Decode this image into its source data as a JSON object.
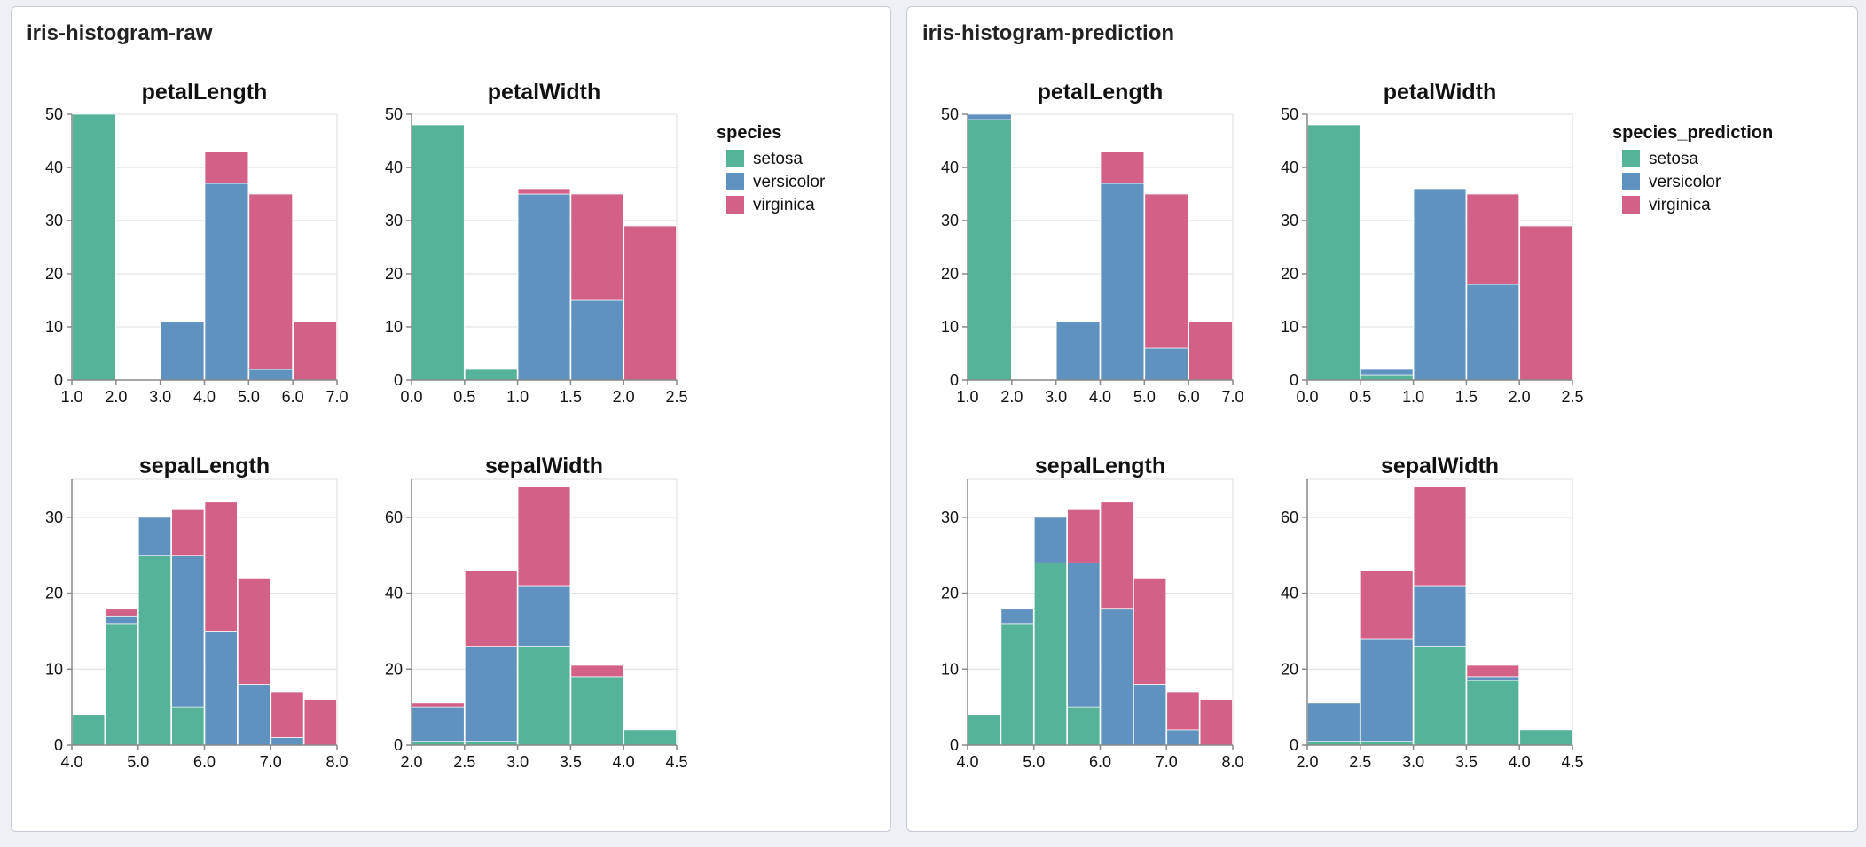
{
  "colors": {
    "setosa": "#54b399",
    "versicolor": "#6092c0",
    "virginica": "#d36086"
  },
  "panels": [
    {
      "title": "iris-histogram-raw",
      "legend_title": "species",
      "legend_items": [
        "setosa",
        "versicolor",
        "virginica"
      ]
    },
    {
      "title": "iris-histogram-prediction",
      "legend_title": "species_prediction",
      "legend_items": [
        "setosa",
        "versicolor",
        "virginica"
      ]
    }
  ],
  "chart_data": [
    {
      "type": "bar",
      "stacked": true,
      "panel": "iris-histogram-raw",
      "title": "petalLength",
      "xlim": [
        1.0,
        7.0
      ],
      "ylim": [
        0,
        50
      ],
      "xticks": [
        "1.0",
        "2.0",
        "3.0",
        "4.0",
        "5.0",
        "6.0",
        "7.0"
      ],
      "yticks": [
        0,
        10,
        20,
        30,
        40,
        50
      ],
      "bins": [
        [
          1,
          2
        ],
        [
          2,
          3
        ],
        [
          3,
          4
        ],
        [
          4,
          5
        ],
        [
          5,
          6
        ],
        [
          6,
          7
        ]
      ],
      "series": [
        {
          "name": "setosa",
          "values": [
            50,
            0,
            0,
            0,
            0,
            0
          ]
        },
        {
          "name": "versicolor",
          "values": [
            0,
            0,
            11,
            37,
            2,
            0
          ]
        },
        {
          "name": "virginica",
          "values": [
            0,
            0,
            0,
            6,
            33,
            11
          ]
        }
      ]
    },
    {
      "type": "bar",
      "stacked": true,
      "panel": "iris-histogram-raw",
      "title": "petalWidth",
      "xlim": [
        0.0,
        2.5
      ],
      "ylim": [
        0,
        50
      ],
      "xticks": [
        "0.0",
        "0.5",
        "1.0",
        "1.5",
        "2.0",
        "2.5"
      ],
      "yticks": [
        0,
        10,
        20,
        30,
        40,
        50
      ],
      "bins": [
        [
          0,
          0.5
        ],
        [
          0.5,
          1.0
        ],
        [
          1.0,
          1.5
        ],
        [
          1.5,
          2.0
        ],
        [
          2.0,
          2.5
        ]
      ],
      "series": [
        {
          "name": "setosa",
          "values": [
            48,
            2,
            0,
            0,
            0
          ]
        },
        {
          "name": "versicolor",
          "values": [
            0,
            0,
            35,
            15,
            0
          ]
        },
        {
          "name": "virginica",
          "values": [
            0,
            0,
            1,
            20,
            29
          ]
        }
      ]
    },
    {
      "type": "bar",
      "stacked": true,
      "panel": "iris-histogram-raw",
      "title": "sepalLength",
      "xlim": [
        4.0,
        8.0
      ],
      "ylim": [
        0,
        35
      ],
      "xticks": [
        "4.0",
        "5.0",
        "6.0",
        "7.0",
        "8.0"
      ],
      "yticks": [
        0,
        10,
        20,
        30
      ],
      "bins": [
        [
          4.0,
          4.5
        ],
        [
          4.5,
          5.0
        ],
        [
          5.0,
          5.5
        ],
        [
          5.5,
          6.0
        ],
        [
          6.0,
          6.5
        ],
        [
          6.5,
          7.0
        ],
        [
          7.0,
          7.5
        ],
        [
          7.5,
          8.0
        ]
      ],
      "series": [
        {
          "name": "setosa",
          "values": [
            4,
            16,
            25,
            5,
            0,
            0,
            0,
            0
          ]
        },
        {
          "name": "versicolor",
          "values": [
            0,
            1,
            5,
            20,
            15,
            8,
            1,
            0
          ]
        },
        {
          "name": "virginica",
          "values": [
            0,
            1,
            0,
            6,
            17,
            14,
            6,
            6
          ]
        }
      ]
    },
    {
      "type": "bar",
      "stacked": true,
      "panel": "iris-histogram-raw",
      "title": "sepalWidth",
      "xlim": [
        2.0,
        4.5
      ],
      "ylim": [
        0,
        70
      ],
      "xticks": [
        "2.0",
        "2.5",
        "3.0",
        "3.5",
        "4.0",
        "4.5"
      ],
      "yticks": [
        0,
        20,
        40,
        60
      ],
      "bins": [
        [
          2.0,
          2.5
        ],
        [
          2.5,
          3.0
        ],
        [
          3.0,
          3.5
        ],
        [
          3.5,
          4.0
        ],
        [
          4.0,
          4.5
        ]
      ],
      "series": [
        {
          "name": "setosa",
          "values": [
            1,
            1,
            26,
            18,
            4
          ]
        },
        {
          "name": "versicolor",
          "values": [
            9,
            25,
            16,
            0,
            0
          ]
        },
        {
          "name": "virginica",
          "values": [
            1,
            20,
            26,
            3,
            0
          ]
        }
      ]
    },
    {
      "type": "bar",
      "stacked": true,
      "panel": "iris-histogram-prediction",
      "title": "petalLength",
      "xlim": [
        1.0,
        7.0
      ],
      "ylim": [
        0,
        50
      ],
      "xticks": [
        "1.0",
        "2.0",
        "3.0",
        "4.0",
        "5.0",
        "6.0",
        "7.0"
      ],
      "yticks": [
        0,
        10,
        20,
        30,
        40,
        50
      ],
      "bins": [
        [
          1,
          2
        ],
        [
          2,
          3
        ],
        [
          3,
          4
        ],
        [
          4,
          5
        ],
        [
          5,
          6
        ],
        [
          6,
          7
        ]
      ],
      "series": [
        {
          "name": "setosa",
          "values": [
            49,
            0,
            0,
            0,
            0,
            0
          ]
        },
        {
          "name": "versicolor",
          "values": [
            1,
            0,
            11,
            37,
            6,
            0
          ]
        },
        {
          "name": "virginica",
          "values": [
            0,
            0,
            0,
            6,
            29,
            11
          ]
        }
      ]
    },
    {
      "type": "bar",
      "stacked": true,
      "panel": "iris-histogram-prediction",
      "title": "petalWidth",
      "xlim": [
        0.0,
        2.5
      ],
      "ylim": [
        0,
        50
      ],
      "xticks": [
        "0.0",
        "0.5",
        "1.0",
        "1.5",
        "2.0",
        "2.5"
      ],
      "yticks": [
        0,
        10,
        20,
        30,
        40,
        50
      ],
      "bins": [
        [
          0,
          0.5
        ],
        [
          0.5,
          1.0
        ],
        [
          1.0,
          1.5
        ],
        [
          1.5,
          2.0
        ],
        [
          2.0,
          2.5
        ]
      ],
      "series": [
        {
          "name": "setosa",
          "values": [
            48,
            1,
            0,
            0,
            0
          ]
        },
        {
          "name": "versicolor",
          "values": [
            0,
            1,
            36,
            18,
            0
          ]
        },
        {
          "name": "virginica",
          "values": [
            0,
            0,
            0,
            17,
            29
          ]
        }
      ]
    },
    {
      "type": "bar",
      "stacked": true,
      "panel": "iris-histogram-prediction",
      "title": "sepalLength",
      "xlim": [
        4.0,
        8.0
      ],
      "ylim": [
        0,
        35
      ],
      "xticks": [
        "4.0",
        "5.0",
        "6.0",
        "7.0",
        "8.0"
      ],
      "yticks": [
        0,
        10,
        20,
        30
      ],
      "bins": [
        [
          4.0,
          4.5
        ],
        [
          4.5,
          5.0
        ],
        [
          5.0,
          5.5
        ],
        [
          5.5,
          6.0
        ],
        [
          6.0,
          6.5
        ],
        [
          6.5,
          7.0
        ],
        [
          7.0,
          7.5
        ],
        [
          7.5,
          8.0
        ]
      ],
      "series": [
        {
          "name": "setosa",
          "values": [
            4,
            16,
            24,
            5,
            0,
            0,
            0,
            0
          ]
        },
        {
          "name": "versicolor",
          "values": [
            0,
            2,
            6,
            19,
            18,
            8,
            2,
            0
          ]
        },
        {
          "name": "virginica",
          "values": [
            0,
            0,
            0,
            7,
            14,
            14,
            5,
            6
          ]
        }
      ]
    },
    {
      "type": "bar",
      "stacked": true,
      "panel": "iris-histogram-prediction",
      "title": "sepalWidth",
      "xlim": [
        2.0,
        4.5
      ],
      "ylim": [
        0,
        70
      ],
      "xticks": [
        "2.0",
        "2.5",
        "3.0",
        "3.5",
        "4.0",
        "4.5"
      ],
      "yticks": [
        0,
        20,
        40,
        60
      ],
      "bins": [
        [
          2.0,
          2.5
        ],
        [
          2.5,
          3.0
        ],
        [
          3.0,
          3.5
        ],
        [
          3.5,
          4.0
        ],
        [
          4.0,
          4.5
        ]
      ],
      "series": [
        {
          "name": "setosa",
          "values": [
            1,
            1,
            26,
            17,
            4
          ]
        },
        {
          "name": "versicolor",
          "values": [
            10,
            27,
            16,
            1,
            0
          ]
        },
        {
          "name": "virginica",
          "values": [
            0,
            18,
            26,
            3,
            0
          ]
        }
      ]
    }
  ]
}
